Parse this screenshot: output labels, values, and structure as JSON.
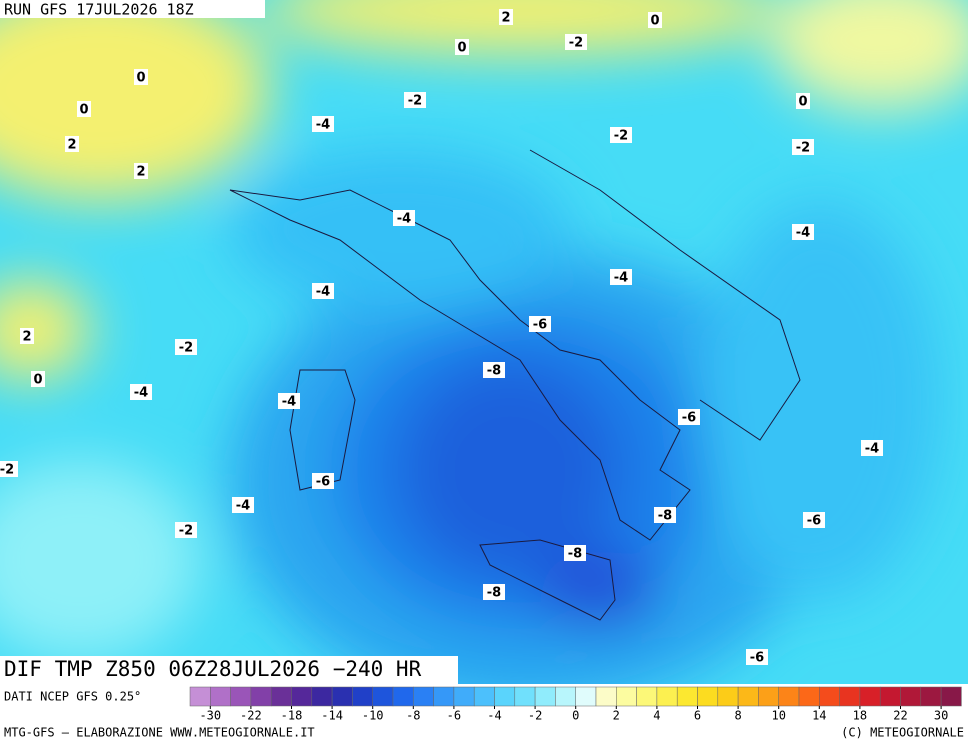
{
  "header": {
    "run": "RUN GFS 17JUL2026 18Z"
  },
  "map_title": "DIF TMP Z850 06Z28JUL2026 −240 HR",
  "source": "DATI NCEP GFS 0.25°",
  "footer": {
    "left": "MTG-GFS — ELABORAZIONE WWW.METEOGIORNALE.IT",
    "right": "(C) METEOGIORNALE"
  },
  "contour_labels": [
    2,
    0,
    0,
    -2,
    0,
    0,
    -2,
    -4,
    0,
    2,
    -2,
    -2,
    2,
    -4,
    -4,
    -4,
    -4,
    -6,
    2,
    -2,
    0,
    -8,
    -4,
    -4,
    -6,
    -4,
    -2,
    -6,
    -4,
    -8,
    -6,
    -2,
    -8,
    -8,
    -6
  ],
  "colorbar": {
    "ticks": [
      -30,
      -22,
      -18,
      -14,
      -10,
      -8,
      -6,
      -4,
      -2,
      0,
      2,
      4,
      6,
      8,
      10,
      14,
      18,
      22,
      30
    ],
    "colors": [
      "#c58fd6",
      "#b070c8",
      "#9a55b8",
      "#8240a8",
      "#6a3098",
      "#55289a",
      "#3c28a0",
      "#2a30b0",
      "#2040c8",
      "#1e55dc",
      "#2068ec",
      "#2a80f4",
      "#3598f8",
      "#40acfa",
      "#4cc0fc",
      "#5ad4fc",
      "#70e0fc",
      "#90ecfc",
      "#b8f6fc",
      "#e0fcfc",
      "#fcfcc8",
      "#fcfca0",
      "#fcf878",
      "#fcf050",
      "#fce830",
      "#fcdc20",
      "#fccc18",
      "#fcb818",
      "#fca018",
      "#fc8418",
      "#fc6818",
      "#f44c1c",
      "#e83420",
      "#d82028",
      "#c41830",
      "#b01838",
      "#9c1840",
      "#881848"
    ]
  }
}
